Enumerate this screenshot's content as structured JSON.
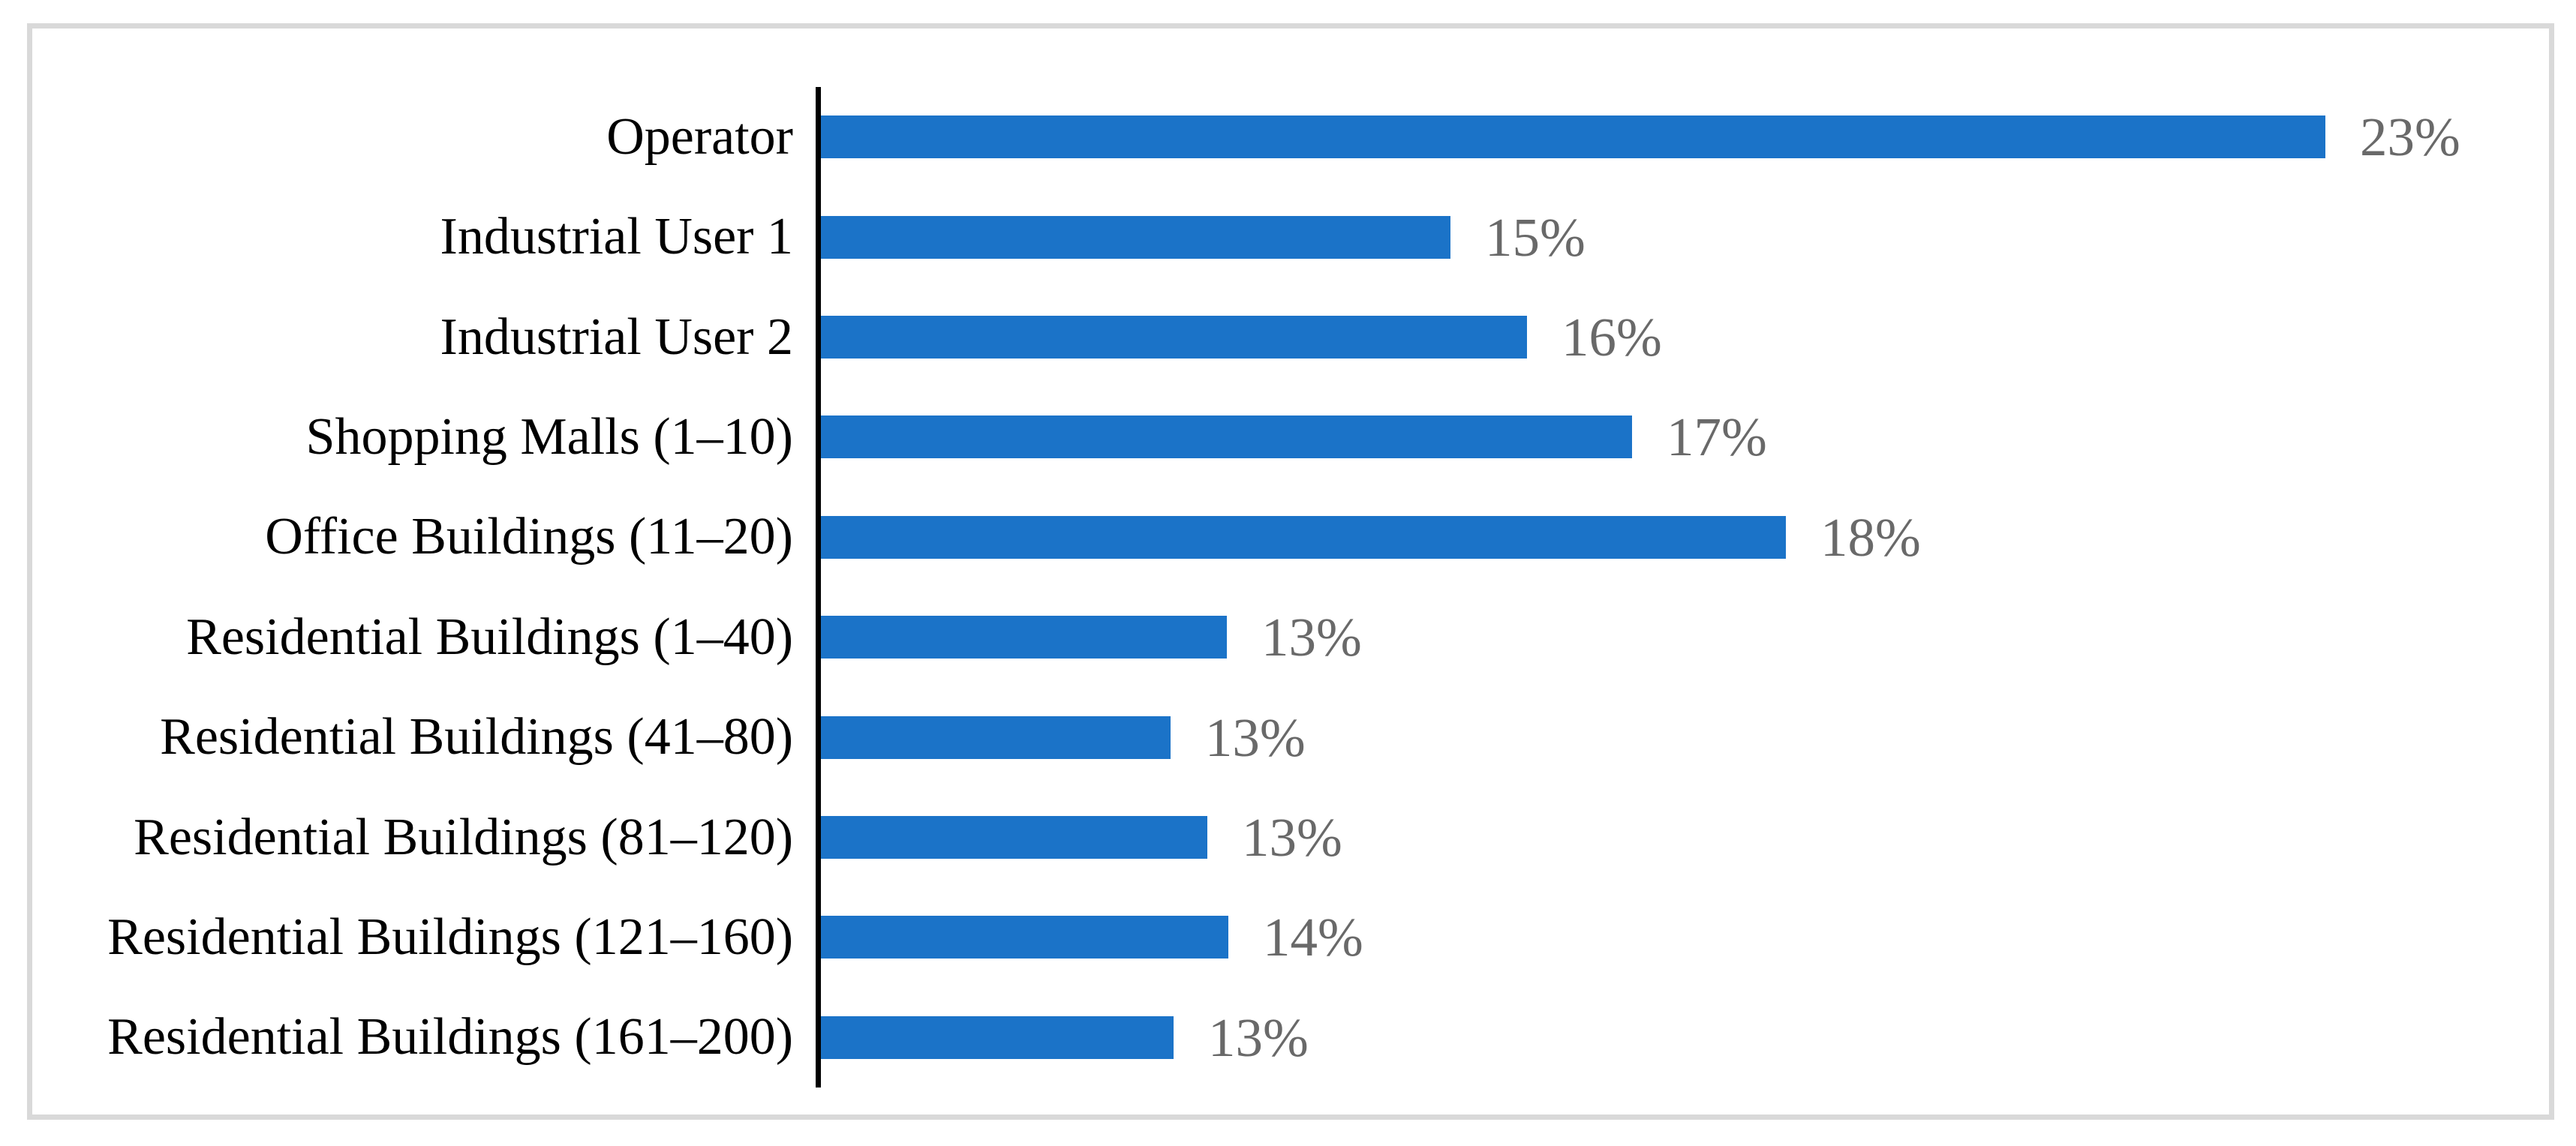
{
  "chart_data": {
    "type": "bar",
    "orientation": "horizontal",
    "title": "",
    "xlabel": "",
    "ylabel": "",
    "legend": "none",
    "gridlines": false,
    "axis_color": "#000000",
    "frame_color": "#D9D9D9",
    "bar_color": "#1B73C8",
    "category_label_color": "#000000",
    "value_label_color": "#696969",
    "categories": [
      "Operator",
      "Industrial User 1",
      "Industrial User 2",
      "Shopping Malls (1–10)",
      "Office Buildings (11–20)",
      "Residential Buildings (1–40)",
      "Residential Buildings (41–80)",
      "Residential Buildings (81–120)",
      "Residential Buildings (121–160)",
      "Residential Buildings (161–200)"
    ],
    "values": [
      23,
      15,
      16,
      17,
      18,
      13,
      13,
      13,
      14,
      13
    ],
    "labels": [
      "23%",
      "15%",
      "16%",
      "17%",
      "18%",
      "13%",
      "13%",
      "13%",
      "14%",
      "13%"
    ],
    "bar_width_pct": [
      87.06,
      36.43,
      40.86,
      46.94,
      55.84,
      23.49,
      20.23,
      22.36,
      23.58,
      20.41
    ]
  }
}
